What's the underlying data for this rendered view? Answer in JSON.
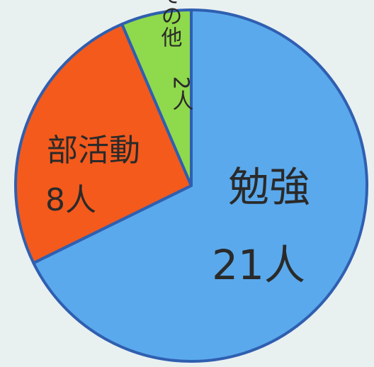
{
  "chart_data": {
    "type": "pie",
    "categories": [
      "勉強",
      "部活動",
      "その他"
    ],
    "values": [
      21,
      8,
      2
    ],
    "value_labels": [
      "21人",
      "8人",
      "2人"
    ],
    "colors": [
      "#5aa9ec",
      "#f45a1c",
      "#8fd94c"
    ]
  }
}
